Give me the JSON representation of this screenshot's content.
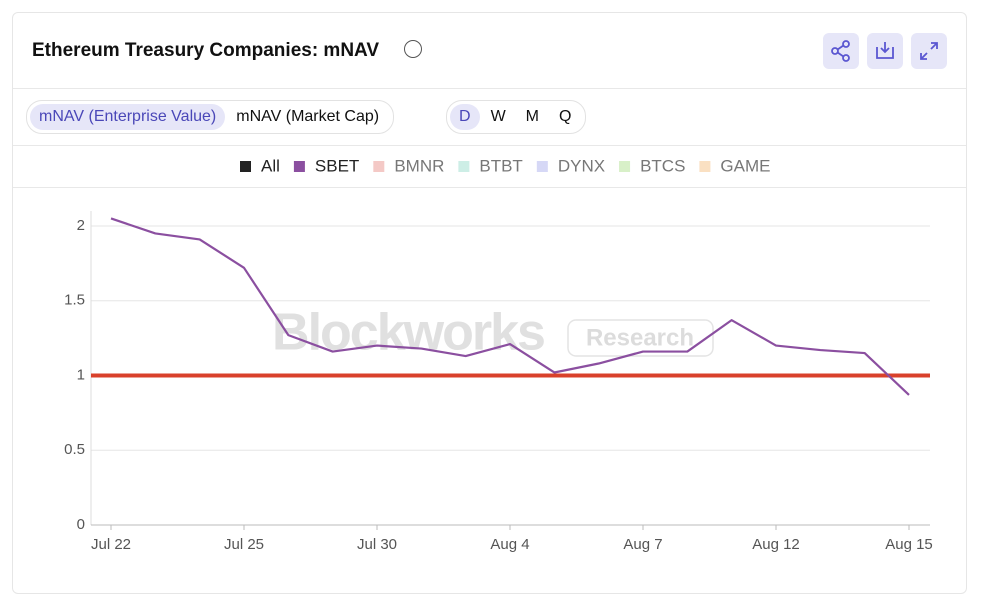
{
  "header": {
    "title": "Ethereum Treasury Companies: mNAV"
  },
  "tabs": [
    {
      "label": "mNAV (Enterprise Value)",
      "active": true
    },
    {
      "label": "mNAV (Market Cap)",
      "active": false
    }
  ],
  "periods": [
    {
      "label": "D",
      "active": true
    },
    {
      "label": "W",
      "active": false
    },
    {
      "label": "M",
      "active": false
    },
    {
      "label": "Q",
      "active": false
    }
  ],
  "watermark": {
    "brand": "Blockworks",
    "tag": "Research"
  },
  "chart_data": {
    "type": "line",
    "categories": [
      "Jul 22",
      null,
      null,
      "Jul 25",
      null,
      null,
      "Jul 30",
      null,
      null,
      "Aug 4",
      null,
      null,
      "Aug 7",
      null,
      null,
      "Aug 12",
      null,
      null,
      "Aug 15"
    ],
    "legend_all": {
      "name": "All",
      "color": "#222222"
    },
    "series": [
      {
        "name": "SBET",
        "color": "#8b4fa0",
        "values": [
          2.05,
          1.95,
          1.91,
          1.72,
          1.27,
          1.16,
          1.2,
          1.18,
          1.13,
          1.21,
          1.02,
          1.08,
          1.16,
          1.16,
          1.37,
          1.2,
          1.17,
          1.15,
          0.87
        ]
      }
    ],
    "hidden_series": [
      {
        "name": "BMNR",
        "color": "#f4c9c6"
      },
      {
        "name": "BTBT",
        "color": "#cdeee6"
      },
      {
        "name": "DYNX",
        "color": "#d6d8f6"
      },
      {
        "name": "BTCS",
        "color": "#d8f0c8"
      },
      {
        "name": "GAME",
        "color": "#fae0c2"
      }
    ],
    "reference_line": {
      "value": 1,
      "color": "#d9412b"
    },
    "ylim": [
      0,
      2.1
    ],
    "yticks": [
      0,
      0.5,
      1,
      1.5,
      2
    ],
    "grid": true
  }
}
